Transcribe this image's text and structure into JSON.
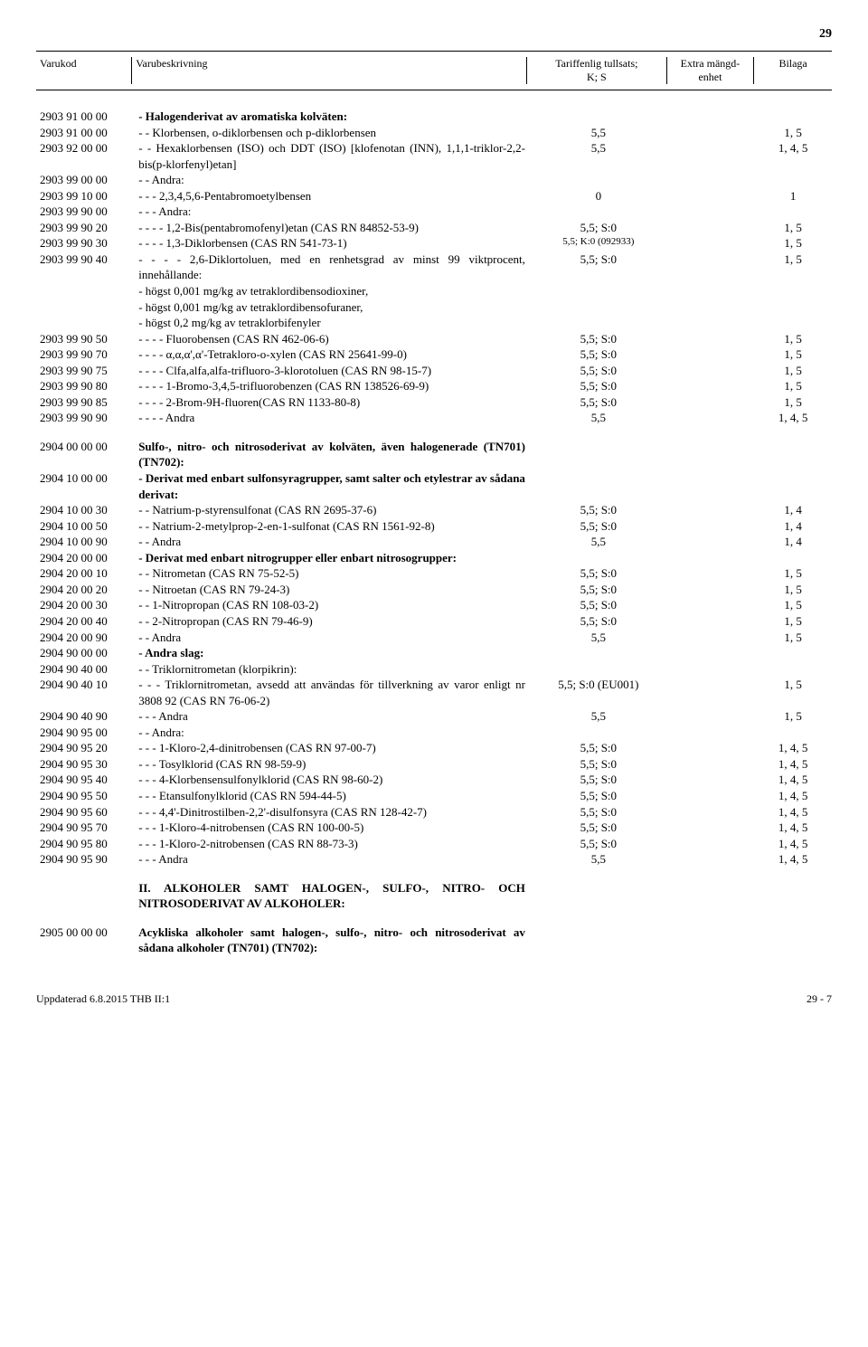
{
  "page_top_number": "29",
  "header": {
    "code": "Varukod",
    "desc": "Varubeskrivning",
    "tariff": "Tariffenlig tullsats;\nK; S",
    "extra": "Extra mängd-\nenhet",
    "annex": "Bilaga"
  },
  "rows": [
    {
      "code": "2903 91 00 00",
      "desc": "- Halogenderivat av aromatiska kolväten:",
      "tariff": "",
      "annex": "",
      "bold": true
    },
    {
      "code": "2903 91 00 00",
      "desc": "- - Klorbensen, o-diklorbensen och p-diklorbensen",
      "tariff": "5,5",
      "annex": "1, 5"
    },
    {
      "code": "2903 92 00 00",
      "desc": "- - Hexaklorbensen (ISO) och DDT (ISO) [klofenotan (INN), 1,1,1-triklor-2,2-bis(p-klorfenyl)etan]",
      "tariff": "5,5",
      "annex": "1, 4, 5"
    },
    {
      "code": "2903 99 00 00",
      "desc": "- - Andra:",
      "tariff": "",
      "annex": ""
    },
    {
      "code": "2903 99 10 00",
      "desc": "- - - 2,3,4,5,6-Pentabromoetylbensen",
      "tariff": "0",
      "annex": "1"
    },
    {
      "code": "2903 99 90 00",
      "desc": "- - - Andra:",
      "tariff": "",
      "annex": ""
    },
    {
      "code": "2903 99 90 20",
      "desc": "- - - - 1,2-Bis(pentabromofenyl)etan (CAS RN 84852-53-9)",
      "tariff": "5,5; S:0",
      "annex": "1, 5"
    },
    {
      "code": "2903 99 90 30",
      "desc": "- - - - 1,3-Diklorbensen (CAS RN 541-73-1)",
      "tariff": "5,5; K:0 (092933)",
      "annex": "1, 5",
      "small_tariff": true
    },
    {
      "code": "2903 99 90 40",
      "desc": "- - - - 2,6-Diklortoluen, med en renhetsgrad av minst 99 viktprocent, innehållande:\n- högst 0,001 mg/kg av tetraklordibensodioxiner,\n- högst 0,001 mg/kg av tetraklordibensofuraner,\n- högst 0,2 mg/kg av tetraklorbifenyler",
      "tariff": "5,5; S:0",
      "annex": "1, 5"
    },
    {
      "code": "2903 99 90 50",
      "desc": "- - - - Fluorobensen (CAS RN 462-06-6)",
      "tariff": "5,5; S:0",
      "annex": "1, 5"
    },
    {
      "code": "2903 99 90 70",
      "desc": "- - - - α,α,α',α'-Tetrakloro-o-xylen (CAS RN 25641-99-0)",
      "tariff": "5,5; S:0",
      "annex": "1, 5"
    },
    {
      "code": "2903 99 90 75",
      "desc": "- - - - Clfa,alfa,alfa-trifluoro-3-klorotoluen (CAS RN 98-15-7)",
      "tariff": "5,5; S:0",
      "annex": "1, 5"
    },
    {
      "code": "2903 99 90 80",
      "desc": "- - - - 1-Bromo-3,4,5-trifluorobenzen (CAS RN 138526-69-9)",
      "tariff": "5,5; S:0",
      "annex": "1, 5"
    },
    {
      "code": "2903 99 90 85",
      "desc": "- - - - 2-Brom-9H-fluoren(CAS RN 1133-80-8)",
      "tariff": "5,5; S:0",
      "annex": "1, 5"
    },
    {
      "code": "2903 99 90 90",
      "desc": "- - - - Andra",
      "tariff": "5,5",
      "annex": "1, 4, 5"
    },
    {
      "spacer": true
    },
    {
      "code": "2904 00 00 00",
      "desc": "Sulfo-, nitro- och nitrosoderivat av kolväten, även halogenerade (TN701) (TN702):",
      "tariff": "",
      "annex": "",
      "bold": true
    },
    {
      "code": "2904 10 00 00",
      "desc": "- Derivat med enbart sulfonsyragrupper, samt salter och etylestrar av sådana derivat:",
      "tariff": "",
      "annex": "",
      "bold": true
    },
    {
      "code": "2904 10 00 30",
      "desc": "- - Natrium-p-styrensulfonat (CAS RN 2695-37-6)",
      "tariff": "5,5; S:0",
      "annex": "1, 4"
    },
    {
      "code": "2904 10 00 50",
      "desc": "- - Natrium-2-metylprop-2-en-1-sulfonat (CAS RN 1561-92-8)",
      "tariff": "5,5; S:0",
      "annex": "1, 4"
    },
    {
      "code": "2904 10 00 90",
      "desc": "- - Andra",
      "tariff": "5,5",
      "annex": "1, 4"
    },
    {
      "code": "2904 20 00 00",
      "desc": "- Derivat med enbart nitrogrupper eller enbart nitrosogrupper:",
      "tariff": "",
      "annex": "",
      "bold": true
    },
    {
      "code": "2904 20 00 10",
      "desc": "- - Nitrometan (CAS RN 75-52-5)",
      "tariff": "5,5; S:0",
      "annex": "1, 5"
    },
    {
      "code": "2904 20 00 20",
      "desc": "- - Nitroetan (CAS RN 79-24-3)",
      "tariff": "5,5; S:0",
      "annex": "1, 5"
    },
    {
      "code": "2904 20 00 30",
      "desc": "- - 1-Nitropropan (CAS RN 108-03-2)",
      "tariff": "5,5; S:0",
      "annex": "1, 5"
    },
    {
      "code": "2904 20 00 40",
      "desc": "- - 2-Nitropropan (CAS RN 79-46-9)",
      "tariff": "5,5; S:0",
      "annex": "1, 5"
    },
    {
      "code": "2904 20 00 90",
      "desc": "- - Andra",
      "tariff": "5,5",
      "annex": "1, 5"
    },
    {
      "code": "2904 90 00 00",
      "desc": "- Andra slag:",
      "tariff": "",
      "annex": "",
      "bold": true
    },
    {
      "code": "2904 90 40 00",
      "desc": "- - Triklornitrometan (klorpikrin):",
      "tariff": "",
      "annex": ""
    },
    {
      "code": "2904 90 40 10",
      "desc": "- - - Triklornitrometan, avsedd att användas för tillverkning av varor enligt nr 3808 92 (CAS RN 76-06-2)",
      "tariff": "5,5; S:0 (EU001)",
      "annex": "1, 5"
    },
    {
      "code": "2904 90 40 90",
      "desc": "- - - Andra",
      "tariff": "5,5",
      "annex": "1, 5"
    },
    {
      "code": "2904 90 95 00",
      "desc": "- - Andra:",
      "tariff": "",
      "annex": ""
    },
    {
      "code": "2904 90 95 20",
      "desc": "- - - 1-Kloro-2,4-dinitrobensen (CAS RN 97-00-7)",
      "tariff": "5,5; S:0",
      "annex": "1, 4, 5"
    },
    {
      "code": "2904 90 95 30",
      "desc": "- - - Tosylklorid (CAS RN 98-59-9)",
      "tariff": "5,5; S:0",
      "annex": "1, 4, 5"
    },
    {
      "code": "2904 90 95 40",
      "desc": "- - - 4-Klorbensensulfonylklorid (CAS RN 98-60-2)",
      "tariff": "5,5; S:0",
      "annex": "1, 4, 5"
    },
    {
      "code": "2904 90 95 50",
      "desc": "- - - Etansulfonylklorid (CAS RN 594-44-5)",
      "tariff": "5,5; S:0",
      "annex": "1, 4, 5"
    },
    {
      "code": "2904 90 95 60",
      "desc": "- - - 4,4'-Dinitrostilben-2,2'-disulfonsyra (CAS RN 128-42-7)",
      "tariff": "5,5; S:0",
      "annex": "1, 4, 5"
    },
    {
      "code": "2904 90 95 70",
      "desc": "- - - 1-Kloro-4-nitrobensen (CAS RN 100-00-5)",
      "tariff": "5,5; S:0",
      "annex": "1, 4, 5"
    },
    {
      "code": "2904 90 95 80",
      "desc": "- - - 1-Kloro-2-nitrobensen (CAS RN 88-73-3)",
      "tariff": "5,5; S:0",
      "annex": "1, 4, 5"
    },
    {
      "code": "2904 90 95 90",
      "desc": "- - - Andra",
      "tariff": "5,5",
      "annex": "1, 4, 5"
    },
    {
      "spacer": true
    },
    {
      "code": "",
      "desc": "II.   ALKOHOLER SAMT HALOGEN-, SULFO-, NITRO- OCH NITROSODERIVAT AV ALKOHOLER:",
      "tariff": "",
      "annex": "",
      "bold": true
    },
    {
      "spacer": true
    },
    {
      "code": "2905 00 00 00",
      "desc": "Acykliska alkoholer samt halogen-, sulfo-, nitro- och nitrosoderivat av sådana alkoholer (TN701) (TN702):",
      "tariff": "",
      "annex": "",
      "bold": true
    }
  ],
  "footer": {
    "left": "Uppdaterad 6.8.2015 THB II:1",
    "right": "29 - 7"
  }
}
